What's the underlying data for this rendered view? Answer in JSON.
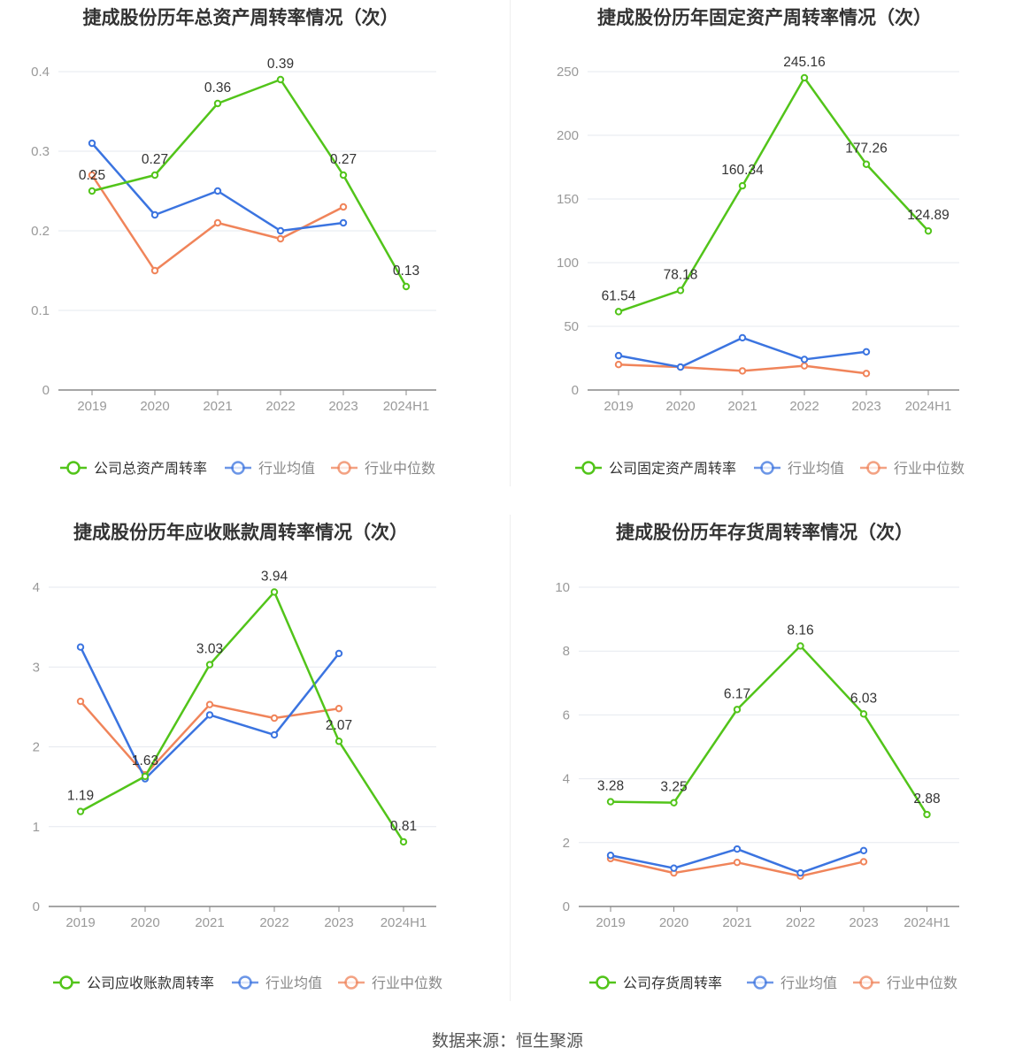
{
  "source": "数据来源：恒生聚源",
  "colors": {
    "company": "#52c41a",
    "avg": "#3b74e0",
    "median": "#f0845a",
    "grid": "#e6e9ef",
    "axis": "#999999"
  },
  "chart_data": [
    {
      "type": "line",
      "title": "捷成股份历年总资产周转率情况（次）",
      "categories": [
        "2019",
        "2020",
        "2021",
        "2022",
        "2023",
        "2024H1"
      ],
      "ylim": [
        0,
        0.4
      ],
      "yticks": [
        0,
        0.1,
        0.2,
        0.3,
        0.4
      ],
      "ytick_labels": [
        "0",
        "0.1",
        "0.2",
        "0.3",
        "0.4"
      ],
      "grid": true,
      "legend_position": "bottom",
      "series": [
        {
          "name": "公司总资产周转率",
          "color": "#52c41a",
          "values": [
            0.25,
            0.27,
            0.36,
            0.39,
            0.27,
            0.13
          ],
          "labels": [
            "0.25",
            "0.27",
            "0.36",
            "0.39",
            "0.27",
            "0.13"
          ]
        },
        {
          "name": "行业均值",
          "color": "#3b74e0",
          "values": [
            0.31,
            0.22,
            0.25,
            0.2,
            0.21,
            null
          ]
        },
        {
          "name": "行业中位数",
          "color": "#f0845a",
          "values": [
            0.27,
            0.15,
            0.21,
            0.19,
            0.23,
            null
          ]
        }
      ]
    },
    {
      "type": "line",
      "title": "捷成股份历年固定资产周转率情况（次）",
      "categories": [
        "2019",
        "2020",
        "2021",
        "2022",
        "2023",
        "2024H1"
      ],
      "ylim": [
        0,
        250
      ],
      "yticks": [
        0,
        50,
        100,
        150,
        200,
        250
      ],
      "ytick_labels": [
        "0",
        "50",
        "100",
        "150",
        "200",
        "250"
      ],
      "grid": true,
      "legend_position": "bottom",
      "series": [
        {
          "name": "公司固定资产周转率",
          "color": "#52c41a",
          "values": [
            61.54,
            78.18,
            160.34,
            245.16,
            177.26,
            124.89
          ],
          "labels": [
            "61.54",
            "78.18",
            "160.34",
            "245.16",
            "177.26",
            "124.89"
          ]
        },
        {
          "name": "行业均值",
          "color": "#3b74e0",
          "values": [
            27,
            18,
            41,
            24,
            30,
            null
          ]
        },
        {
          "name": "行业中位数",
          "color": "#f0845a",
          "values": [
            20,
            18,
            15,
            19,
            13,
            null
          ]
        }
      ]
    },
    {
      "type": "line",
      "title": "捷成股份历年应收账款周转率情况（次）",
      "categories": [
        "2019",
        "2020",
        "2021",
        "2022",
        "2023",
        "2024H1"
      ],
      "ylim": [
        0,
        4
      ],
      "yticks": [
        0,
        1,
        2,
        3,
        4
      ],
      "ytick_labels": [
        "0",
        "1",
        "2",
        "3",
        "4"
      ],
      "grid": true,
      "legend_position": "bottom",
      "series": [
        {
          "name": "公司应收账款周转率",
          "color": "#52c41a",
          "values": [
            1.19,
            1.63,
            3.03,
            3.94,
            2.07,
            0.81
          ],
          "labels": [
            "1.19",
            "1.63",
            "3.03",
            "3.94",
            "2.07",
            "0.81"
          ]
        },
        {
          "name": "行业均值",
          "color": "#3b74e0",
          "values": [
            3.25,
            1.6,
            2.4,
            2.15,
            3.17,
            null
          ]
        },
        {
          "name": "行业中位数",
          "color": "#f0845a",
          "values": [
            2.57,
            1.65,
            2.53,
            2.36,
            2.48,
            null
          ]
        }
      ]
    },
    {
      "type": "line",
      "title": "捷成股份历年存货周转率情况（次）",
      "categories": [
        "2019",
        "2020",
        "2021",
        "2022",
        "2023",
        "2024H1"
      ],
      "ylim": [
        0,
        10
      ],
      "yticks": [
        0,
        2,
        4,
        6,
        8,
        10
      ],
      "ytick_labels": [
        "0",
        "2",
        "4",
        "6",
        "8",
        "10"
      ],
      "grid": true,
      "legend_position": "bottom",
      "series": [
        {
          "name": "公司存货周转率",
          "color": "#52c41a",
          "values": [
            3.28,
            3.25,
            6.17,
            8.16,
            6.03,
            2.88
          ],
          "labels": [
            "3.28",
            "3.25",
            "6.17",
            "8.16",
            "6.03",
            "2.88"
          ]
        },
        {
          "name": "行业均值",
          "color": "#3b74e0",
          "values": [
            1.6,
            1.2,
            1.8,
            1.05,
            1.75,
            null
          ]
        },
        {
          "name": "行业中位数",
          "color": "#f0845a",
          "values": [
            1.5,
            1.05,
            1.38,
            0.95,
            1.4,
            null
          ]
        }
      ]
    }
  ]
}
